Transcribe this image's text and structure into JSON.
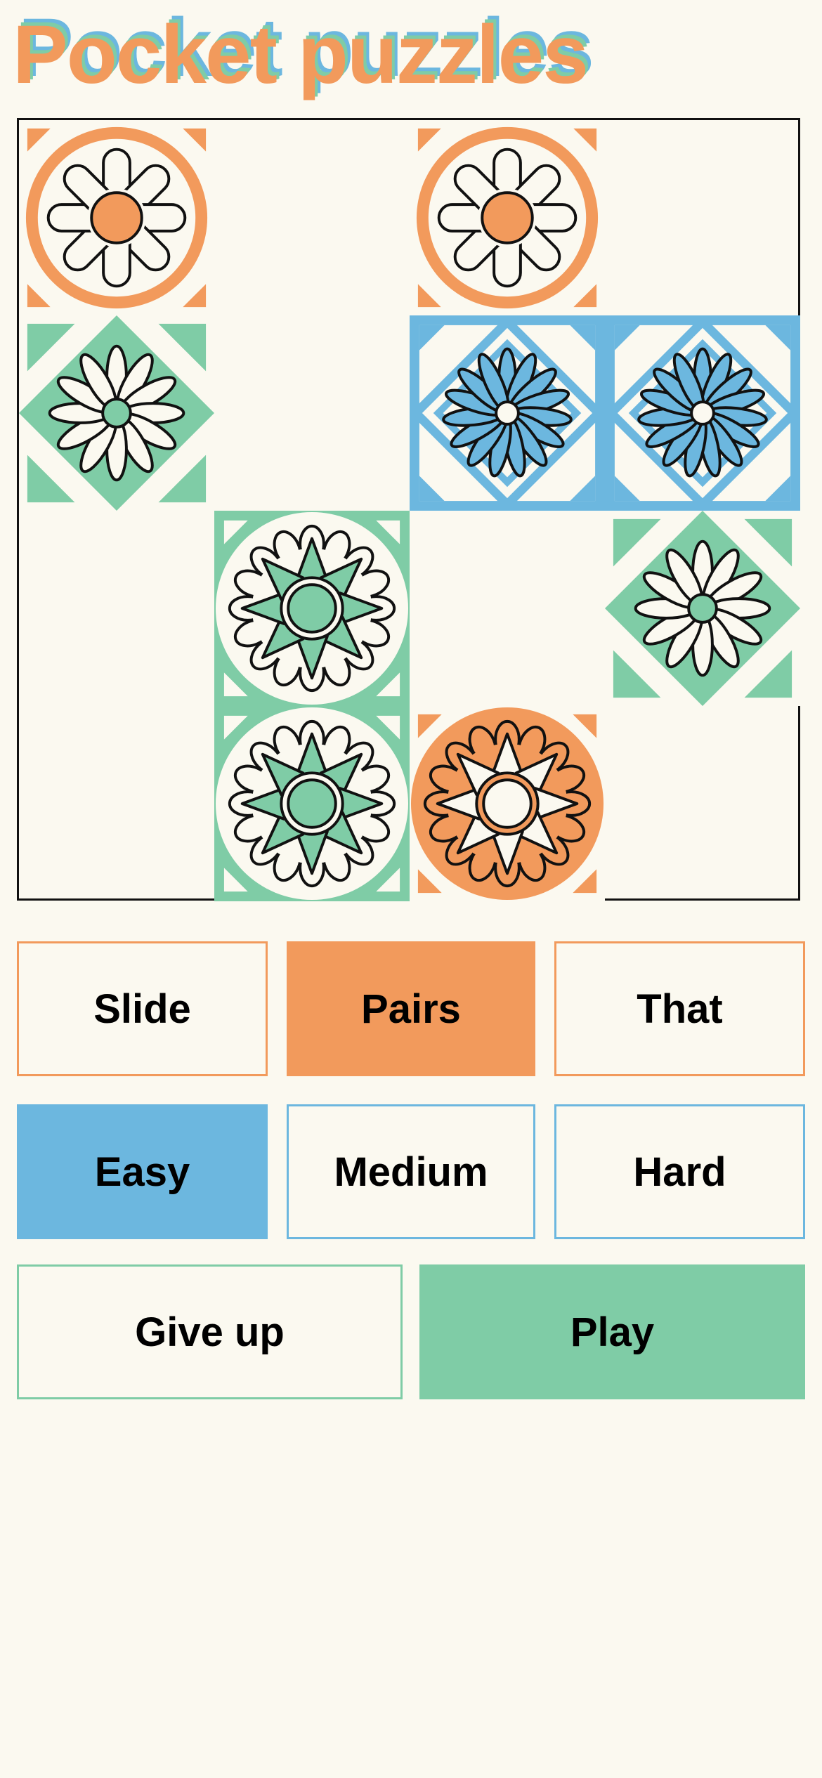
{
  "app": {
    "title": "Pocket puzzles"
  },
  "colors": {
    "orange": "#f29a5c",
    "green": "#7fcca6",
    "blue": "#6cb7df",
    "background": "#fbf9f0"
  },
  "board": {
    "columns": 4,
    "rows": 4,
    "tiles": [
      {
        "row": 0,
        "col": 0,
        "design": "orange-daisy-ring-icon"
      },
      {
        "row": 0,
        "col": 2,
        "design": "orange-daisy-ring-icon"
      },
      {
        "row": 1,
        "col": 0,
        "design": "green-diamond-flower-icon"
      },
      {
        "row": 1,
        "col": 2,
        "design": "blue-diamond-flower-icon"
      },
      {
        "row": 1,
        "col": 3,
        "design": "blue-diamond-flower-icon"
      },
      {
        "row": 2,
        "col": 1,
        "design": "green-lotus-flower-icon"
      },
      {
        "row": 2,
        "col": 3,
        "design": "green-diamond-flower-icon"
      },
      {
        "row": 3,
        "col": 1,
        "design": "green-lotus-flower-icon"
      },
      {
        "row": 3,
        "col": 2,
        "design": "orange-lotus-flower-icon"
      }
    ]
  },
  "game_modes": {
    "selected": "Pairs",
    "options": [
      "Slide",
      "Pairs",
      "That"
    ]
  },
  "difficulty": {
    "selected": "Easy",
    "options": [
      "Easy",
      "Medium",
      "Hard"
    ]
  },
  "actions": {
    "give_up": "Give up",
    "play": "Play"
  }
}
